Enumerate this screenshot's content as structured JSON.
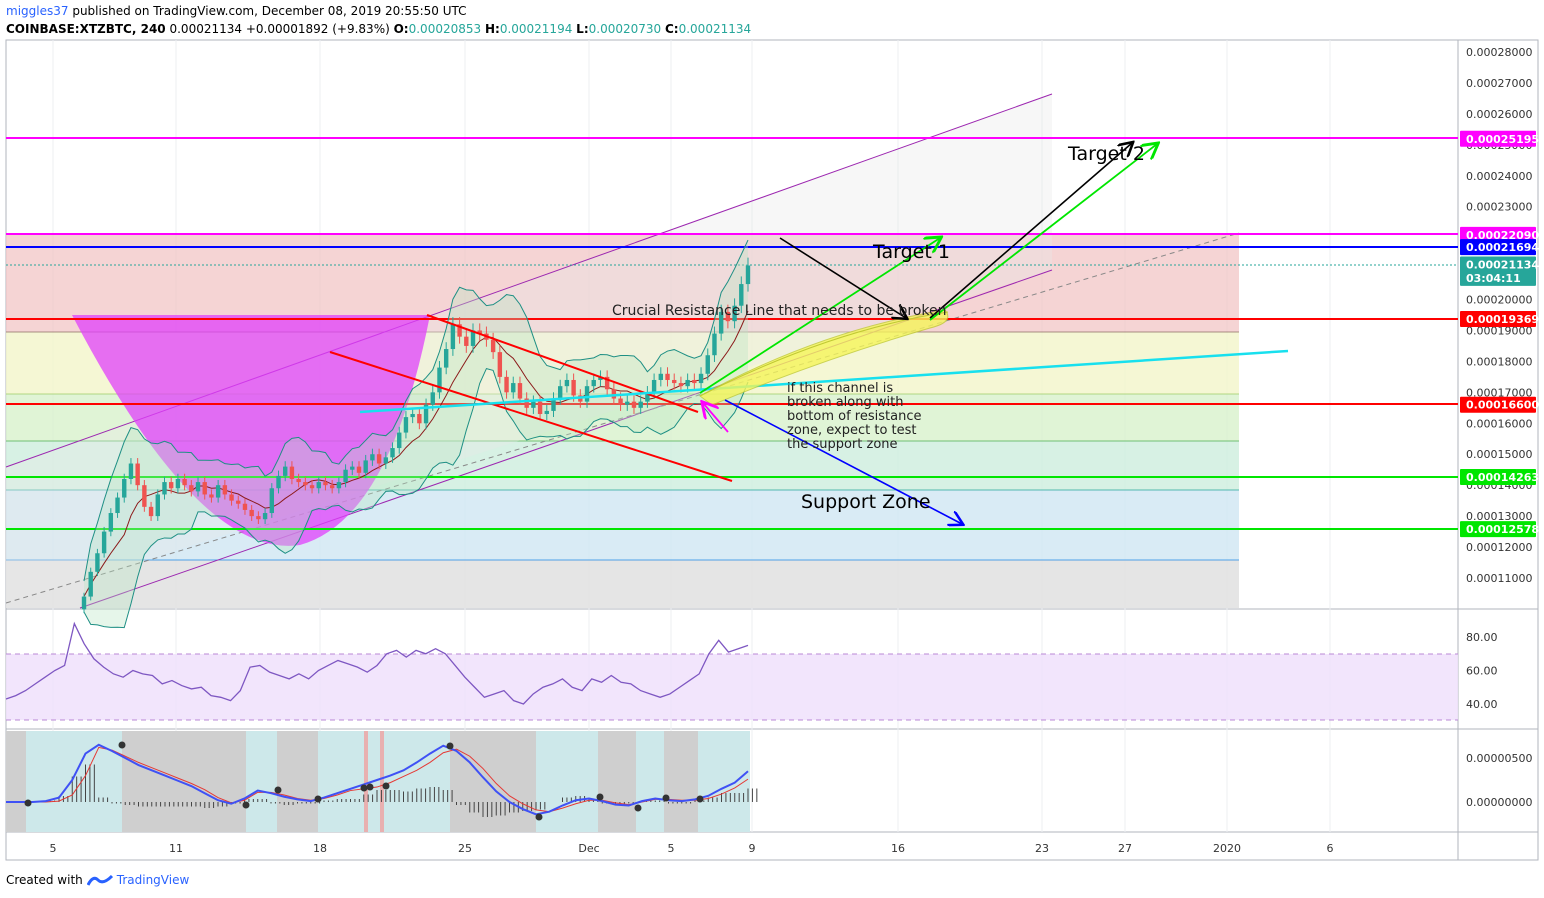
{
  "header": {
    "user": "miggles37",
    "published_text": "published on TradingView.com, December 08, 2019 20:55:50 UTC",
    "symbol": "COINBASE:XTZBTC, 240",
    "last": "0.00021134",
    "change": "+0.00001892 (+9.83%)",
    "o_label": "O:",
    "o_value": "0.00020853",
    "h_label": "H:",
    "h_value": "0.00021194",
    "l_label": "L:",
    "l_value": "0.00020730",
    "c_label": "C:",
    "c_value": "0.00021134"
  },
  "footer": {
    "created_with": "Created with",
    "brand": "TradingView"
  },
  "colors": {
    "up": "#26a69a",
    "down": "#ef5350",
    "magenta": "#ff00ff",
    "blue": "#0000ff",
    "red": "#ff0000",
    "green": "#00e600",
    "rsi": "#7e57c2",
    "macd": "#3f51f5"
  },
  "annotations": {
    "target1": "Target 1",
    "target2": "Target 2",
    "crucial": "Crucial Resistance Line that needs to be broken",
    "channel_note": [
      "if this channel is",
      "broken along with",
      "bottom of resistance",
      "zone, expect to test",
      "the support zone"
    ],
    "support": "Support Zone"
  },
  "chart_data": [
    {
      "type": "candlestick",
      "pane": "price",
      "ylim": [
        0.000102,
        0.000285
      ],
      "y_ticks": [
        "0.00011000",
        "0.00012000",
        "0.00013000",
        "0.00014000",
        "0.00015000",
        "0.00016000",
        "0.00017000",
        "0.00018000",
        "0.00019000",
        "0.00020000",
        "0.00021000",
        "0.00022000",
        "0.00023000",
        "0.00024000",
        "0.00025000",
        "0.00026000",
        "0.00027000",
        "0.00028000"
      ],
      "x_ticks": [
        "5",
        "11",
        "18",
        "25",
        "Dec",
        "5",
        "9",
        "16",
        "23",
        "27",
        "2020",
        "6"
      ],
      "levels": [
        {
          "label": "0.00025195",
          "value": 0.00025195,
          "color": "#ff00ff"
        },
        {
          "label": "0.00022090",
          "value": 0.0002209,
          "color": "#ff00ff"
        },
        {
          "label": "0.00021694",
          "value": 0.00021694,
          "color": "#0000ff"
        },
        {
          "label": "0.00021134",
          "value": 0.00021134,
          "color": "#26a69a"
        },
        {
          "label": "03:04:11",
          "value": 0.000207,
          "color": "#26a69a"
        },
        {
          "label": "0.00019369",
          "value": 0.00019369,
          "color": "#ff0000"
        },
        {
          "label": "0.00016600",
          "value": 0.000166,
          "color": "#ff0000"
        },
        {
          "label": "0.00014263",
          "value": 0.00014263,
          "color": "#00e600"
        },
        {
          "label": "0.00012578",
          "value": 0.00012578,
          "color": "#00e600"
        }
      ],
      "close_series": [
        0.000104,
        0.000112,
        0.000118,
        0.000125,
        0.000131,
        0.000136,
        0.000142,
        0.000147,
        0.00014,
        0.000133,
        0.00013,
        0.000137,
        0.000141,
        0.000139,
        0.000142,
        0.00014,
        0.000138,
        0.000141,
        0.000137,
        0.000136,
        0.00014,
        0.000137,
        0.000135,
        0.000134,
        0.000132,
        0.00013,
        0.000129,
        0.000131,
        0.000139,
        0.000143,
        0.000146,
        0.000142,
        0.000141,
        0.00014,
        0.000139,
        0.000141,
        0.00014,
        0.000139,
        0.000141,
        0.000145,
        0.000146,
        0.000144,
        0.000148,
        0.00015,
        0.000147,
        0.000149,
        0.000152,
        0.000157,
        0.000162,
        0.000163,
        0.00016,
        0.000166,
        0.00017,
        0.000178,
        0.000184,
        0.000192,
        0.000188,
        0.000185,
        0.00019,
        0.000189,
        0.000187,
        0.000183,
        0.000175,
        0.00017,
        0.000173,
        0.000168,
        0.000165,
        0.000167,
        0.000163,
        0.000164,
        0.000168,
        0.000172,
        0.000174,
        0.000169,
        0.000167,
        0.000172,
        0.000174,
        0.000175,
        0.000171,
        0.000168,
        0.000166,
        0.000167,
        0.000165,
        0.000167,
        0.00017,
        0.000174,
        0.000176,
        0.000174,
        0.000173,
        0.000172,
        0.000174,
        0.000173,
        0.000176,
        0.000182,
        0.000189,
        0.000196,
        0.000193,
        0.000198,
        0.000205,
        0.000211
      ]
    },
    {
      "type": "line",
      "pane": "rsi",
      "ylim": [
        30,
        90
      ],
      "y_ticks": [
        "80.00",
        "60.00",
        "40.00"
      ],
      "bands": [
        70,
        30
      ],
      "values": [
        43,
        45,
        48,
        52,
        56,
        60,
        63,
        88,
        76,
        67,
        62,
        58,
        56,
        60,
        58,
        57,
        52,
        54,
        51,
        49,
        50,
        45,
        44,
        42,
        48,
        62,
        63,
        59,
        57,
        55,
        58,
        55,
        60,
        63,
        66,
        64,
        62,
        59,
        63,
        70,
        72,
        68,
        72,
        70,
        73,
        70,
        63,
        56,
        50,
        44,
        46,
        48,
        42,
        40,
        46,
        50,
        52,
        55,
        50,
        48,
        55,
        53,
        57,
        53,
        52,
        48,
        46,
        44,
        46,
        50,
        54,
        58,
        70,
        78,
        71,
        73,
        75
      ]
    },
    {
      "type": "line",
      "pane": "macd",
      "y_ticks": [
        "0.00000500",
        "0.00000000"
      ],
      "ylim": [
        -3.5e-06,
        7.5e-06
      ],
      "macd": [
        0,
        0,
        0,
        0.1,
        0.5,
        2.5,
        5.5,
        6.5,
        5.8,
        5.0,
        4.2,
        3.6,
        3.0,
        2.4,
        1.8,
        1.0,
        0.2,
        -0.2,
        0.4,
        1.3,
        1.0,
        0.6,
        0.3,
        0.1,
        0.5,
        1.0,
        1.5,
        2.0,
        2.5,
        3.0,
        3.6,
        4.5,
        5.5,
        6.4,
        5.8,
        4.5,
        2.8,
        1.2,
        0.0,
        -0.8,
        -1.4,
        -1.1,
        -0.4,
        0.2,
        0.4,
        0.1,
        -0.3,
        -0.4,
        0.1,
        0.4,
        0.2,
        0.1,
        0.3,
        0.7,
        1.5,
        2.2,
        3.5
      ],
      "signal": [
        0,
        0,
        0,
        0,
        0.1,
        0.8,
        3.0,
        6.2,
        5.9,
        5.2,
        4.5,
        3.9,
        3.3,
        2.7,
        2.1,
        1.4,
        0.5,
        -0.1,
        0.2,
        1.1,
        1.1,
        0.8,
        0.4,
        0.2,
        0.4,
        0.8,
        1.3,
        1.5,
        1.7,
        2.2,
        2.9,
        3.6,
        4.5,
        5.6,
        6.0,
        5.2,
        3.8,
        2.1,
        0.7,
        -0.2,
        -0.9,
        -1.1,
        -0.7,
        -0.2,
        0.2,
        0.2,
        -0.1,
        -0.3,
        0.0,
        0.3,
        0.3,
        0.2,
        0.2,
        0.4,
        0.9,
        1.6,
        2.6
      ]
    }
  ]
}
